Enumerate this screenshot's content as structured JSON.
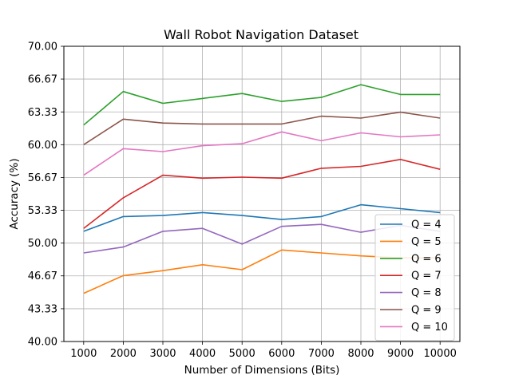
{
  "chart_data": {
    "type": "line",
    "title": "Wall Robot Navigation Dataset",
    "xlabel": "Number of Dimensions (Bits)",
    "ylabel": "Accuracy (%)",
    "x": [
      1000,
      2000,
      3000,
      4000,
      5000,
      6000,
      7000,
      8000,
      9000,
      10000
    ],
    "x_tick_labels": [
      "1000",
      "2000",
      "3000",
      "4000",
      "5000",
      "6000",
      "7000",
      "8000",
      "9000",
      "10000"
    ],
    "ylim": [
      40.0,
      70.0
    ],
    "xlim": [
      500,
      10500
    ],
    "y_ticks": [
      40.0,
      43.33,
      46.67,
      50.0,
      53.33,
      56.67,
      60.0,
      63.33,
      66.67,
      70.0
    ],
    "y_tick_labels": [
      "40.00",
      "43.33",
      "46.67",
      "50.00",
      "53.33",
      "56.67",
      "60.00",
      "63.33",
      "66.67",
      "70.00"
    ],
    "grid": true,
    "legend_position": "lower-right",
    "series": [
      {
        "name": "Q = 4",
        "color": "#1f77b4",
        "values": [
          51.2,
          52.7,
          52.8,
          53.1,
          52.8,
          52.4,
          52.7,
          53.9,
          53.5,
          53.1
        ]
      },
      {
        "name": "Q = 5",
        "color": "#ff7f0e",
        "values": [
          44.9,
          46.7,
          47.2,
          47.8,
          47.3,
          49.3,
          49.0,
          48.7,
          48.5,
          48.5
        ]
      },
      {
        "name": "Q = 6",
        "color": "#2ca02c",
        "values": [
          62.0,
          65.4,
          64.2,
          64.7,
          65.2,
          64.4,
          64.8,
          66.1,
          65.1,
          65.1
        ]
      },
      {
        "name": "Q = 7",
        "color": "#d62728",
        "values": [
          51.5,
          54.6,
          56.9,
          56.6,
          56.7,
          56.6,
          57.6,
          57.8,
          58.5,
          57.5
        ]
      },
      {
        "name": "Q = 8",
        "color": "#9467bd",
        "values": [
          49.0,
          49.6,
          51.2,
          51.5,
          49.9,
          51.7,
          51.9,
          51.1,
          51.8,
          51.2
        ]
      },
      {
        "name": "Q = 9",
        "color": "#8c564b",
        "values": [
          60.0,
          62.6,
          62.2,
          62.1,
          62.1,
          62.1,
          62.9,
          62.7,
          63.3,
          62.7
        ]
      },
      {
        "name": "Q = 10",
        "color": "#e377c2",
        "values": [
          56.9,
          59.6,
          59.3,
          59.9,
          60.1,
          61.3,
          60.4,
          61.2,
          60.8,
          61.0
        ]
      }
    ]
  }
}
